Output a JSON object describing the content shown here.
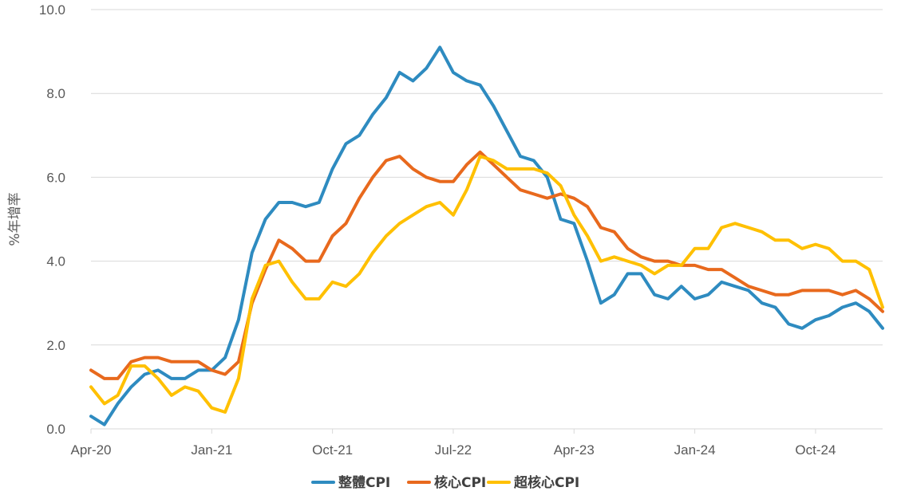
{
  "chart_data": {
    "type": "line",
    "title": "",
    "ylabel": "%年增率",
    "xlabel": "",
    "ylim": [
      0,
      10
    ],
    "grid": true,
    "legend_position": "bottom",
    "y_ticks": [
      "0.0",
      "2.0",
      "4.0",
      "6.0",
      "8.0",
      "10.0"
    ],
    "x_ticks": [
      {
        "label": "Apr-20",
        "index": 0
      },
      {
        "label": "Jan-21",
        "index": 9
      },
      {
        "label": "Oct-21",
        "index": 18
      },
      {
        "label": "Jul-22",
        "index": 27
      },
      {
        "label": "Apr-23",
        "index": 36
      },
      {
        "label": "Jan-24",
        "index": 45
      },
      {
        "label": "Oct-24",
        "index": 54
      }
    ],
    "x": [
      "Apr-20",
      "May-20",
      "Jun-20",
      "Jul-20",
      "Aug-20",
      "Sep-20",
      "Oct-20",
      "Nov-20",
      "Dec-20",
      "Jan-21",
      "Feb-21",
      "Mar-21",
      "Apr-21",
      "May-21",
      "Jun-21",
      "Jul-21",
      "Aug-21",
      "Sep-21",
      "Oct-21",
      "Nov-21",
      "Dec-21",
      "Jan-22",
      "Feb-22",
      "Mar-22",
      "Apr-22",
      "May-22",
      "Jun-22",
      "Jul-22",
      "Aug-22",
      "Sep-22",
      "Oct-22",
      "Nov-22",
      "Dec-22",
      "Jan-23",
      "Feb-23",
      "Mar-23",
      "Apr-23",
      "May-23",
      "Jun-23",
      "Jul-23",
      "Aug-23",
      "Sep-23",
      "Oct-23",
      "Nov-23",
      "Dec-23",
      "Jan-24",
      "Feb-24",
      "Mar-24",
      "Apr-24",
      "May-24",
      "Jun-24",
      "Jul-24",
      "Aug-24",
      "Sep-24",
      "Oct-24",
      "Nov-24",
      "Dec-24",
      "Jan-25",
      "Feb-25",
      "Mar-25"
    ],
    "series": [
      {
        "name": "整體CPI",
        "color": "#2E8BC0",
        "values": [
          0.3,
          0.1,
          0.6,
          1.0,
          1.3,
          1.4,
          1.2,
          1.2,
          1.4,
          1.4,
          1.7,
          2.6,
          4.2,
          5.0,
          5.4,
          5.4,
          5.3,
          5.4,
          6.2,
          6.8,
          7.0,
          7.5,
          7.9,
          8.5,
          8.3,
          8.6,
          9.1,
          8.5,
          8.3,
          8.2,
          7.7,
          7.1,
          6.5,
          6.4,
          6.0,
          5.0,
          4.9,
          4.0,
          3.0,
          3.2,
          3.7,
          3.7,
          3.2,
          3.1,
          3.4,
          3.1,
          3.2,
          3.5,
          3.4,
          3.3,
          3.0,
          2.9,
          2.5,
          2.4,
          2.6,
          2.7,
          2.9,
          3.0,
          2.8,
          2.4
        ]
      },
      {
        "name": "核心CPI",
        "color": "#E8691D",
        "values": [
          1.4,
          1.2,
          1.2,
          1.6,
          1.7,
          1.7,
          1.6,
          1.6,
          1.6,
          1.4,
          1.3,
          1.6,
          3.0,
          3.8,
          4.5,
          4.3,
          4.0,
          4.0,
          4.6,
          4.9,
          5.5,
          6.0,
          6.4,
          6.5,
          6.2,
          6.0,
          5.9,
          5.9,
          6.3,
          6.6,
          6.3,
          6.0,
          5.7,
          5.6,
          5.5,
          5.6,
          5.5,
          5.3,
          4.8,
          4.7,
          4.3,
          4.1,
          4.0,
          4.0,
          3.9,
          3.9,
          3.8,
          3.8,
          3.6,
          3.4,
          3.3,
          3.2,
          3.2,
          3.3,
          3.3,
          3.3,
          3.2,
          3.3,
          3.1,
          2.8
        ]
      },
      {
        "name": "超核心CPI",
        "color": "#FFC000",
        "values": [
          1.0,
          0.6,
          0.8,
          1.5,
          1.5,
          1.2,
          0.8,
          1.0,
          0.9,
          0.5,
          0.4,
          1.2,
          3.1,
          3.9,
          4.0,
          3.5,
          3.1,
          3.1,
          3.5,
          3.4,
          3.7,
          4.2,
          4.6,
          4.9,
          5.1,
          5.3,
          5.4,
          5.1,
          5.7,
          6.5,
          6.4,
          6.2,
          6.2,
          6.2,
          6.1,
          5.8,
          5.1,
          4.6,
          4.0,
          4.1,
          4.0,
          3.9,
          3.7,
          3.9,
          3.9,
          4.3,
          4.3,
          4.8,
          4.9,
          4.8,
          4.7,
          4.5,
          4.5,
          4.3,
          4.4,
          4.3,
          4.0,
          4.0,
          3.8,
          2.9
        ]
      }
    ]
  }
}
